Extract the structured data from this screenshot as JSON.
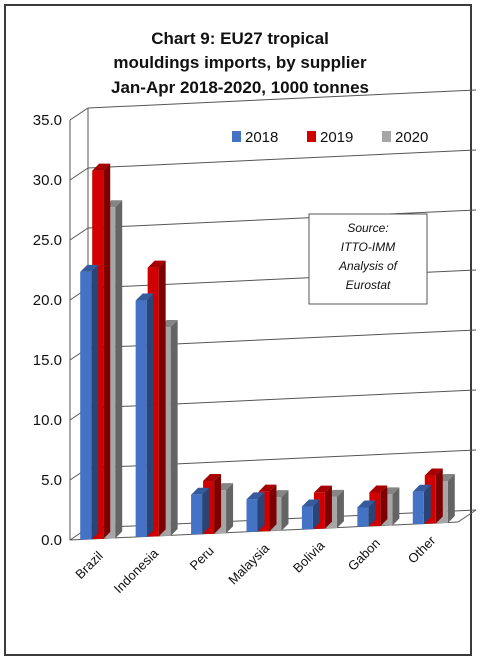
{
  "chart_data": {
    "type": "bar",
    "title_lines": [
      "Chart 9: EU27 tropical",
      "mouldings imports, by supplier",
      "Jan-Apr 2018-2020, 1000 tonnes"
    ],
    "categories": [
      "Brazil",
      "Indonesia",
      "Peru",
      "Malaysia",
      "Bolivia",
      "Gabon",
      "Other"
    ],
    "series": [
      {
        "name": "2018",
        "color": "#4472C4",
        "values": [
          22.3,
          19.7,
          3.3,
          2.7,
          1.9,
          1.6,
          2.7
        ]
      },
      {
        "name": "2019",
        "color": "#D00000",
        "values": [
          30.7,
          22.4,
          4.4,
          3.3,
          3.0,
          2.8,
          4.0
        ]
      },
      {
        "name": "2020",
        "color": "#A6A6A6",
        "values": [
          27.6,
          17.4,
          3.6,
          2.8,
          2.6,
          2.6,
          3.5
        ]
      }
    ],
    "ylim": [
      0,
      35
    ],
    "yticks": [
      "0.0",
      "5.0",
      "10.0",
      "15.0",
      "20.0",
      "25.0",
      "30.0",
      "35.0"
    ],
    "grid": true,
    "legend_position": "top-right",
    "annotation_lines": [
      "Source:",
      "ITTO-IMM",
      "Analysis of",
      "Eurostat"
    ]
  }
}
